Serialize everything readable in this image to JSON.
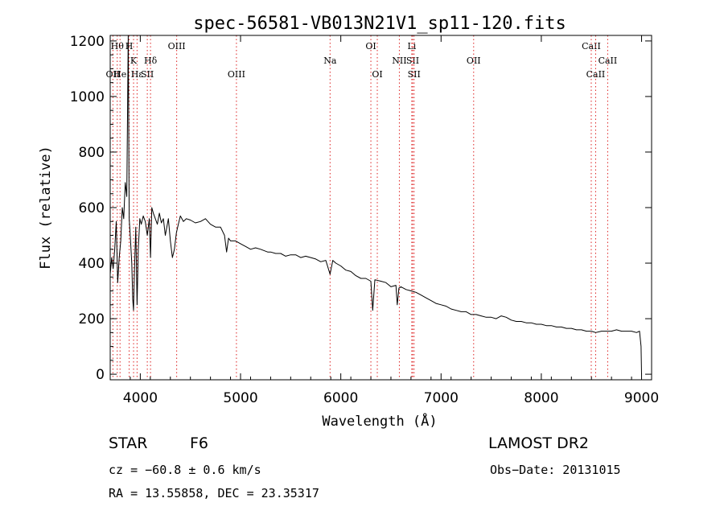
{
  "chart_data": {
    "type": "line",
    "title": "spec-56581-VB013N21V1_sp11-120.fits",
    "xlabel": "Wavelength (Å)",
    "ylabel": "Flux (relative)",
    "xlim": [
      3700,
      9100
    ],
    "ylim": [
      -20,
      1220
    ],
    "xticks": [
      4000,
      5000,
      6000,
      7000,
      8000,
      9000
    ],
    "yticks": [
      0,
      200,
      400,
      600,
      800,
      1000,
      1200
    ],
    "grid": false,
    "series": [
      {
        "color": "#000000",
        "x": [
          3700,
          3715,
          3730,
          3745,
          3760,
          3775,
          3790,
          3805,
          3820,
          3835,
          3850,
          3865,
          3880,
          3889,
          3900,
          3915,
          3925,
          3933,
          3940,
          3955,
          3968,
          3980,
          3995,
          4010,
          4030,
          4050,
          4070,
          4090,
          4102,
          4115,
          4130,
          4150,
          4170,
          4190,
          4210,
          4230,
          4250,
          4280,
          4300,
          4320,
          4340,
          4360,
          4380,
          4400,
          4430,
          4460,
          4500,
          4550,
          4600,
          4650,
          4700,
          4750,
          4800,
          4840,
          4861,
          4880,
          4900,
          4950,
          5000,
          5050,
          5100,
          5150,
          5200,
          5270,
          5300,
          5350,
          5400,
          5450,
          5500,
          5550,
          5600,
          5650,
          5700,
          5750,
          5800,
          5850,
          5893,
          5920,
          5950,
          6000,
          6050,
          6100,
          6150,
          6200,
          6250,
          6300,
          6318,
          6340,
          6400,
          6450,
          6500,
          6550,
          6563,
          6580,
          6600,
          6650,
          6700,
          6750,
          6800,
          6850,
          6900,
          6950,
          7000,
          7050,
          7100,
          7150,
          7200,
          7250,
          7300,
          7350,
          7400,
          7450,
          7500,
          7550,
          7600,
          7650,
          7700,
          7750,
          7800,
          7850,
          7900,
          7950,
          8000,
          8050,
          8100,
          8150,
          8200,
          8250,
          8300,
          8350,
          8400,
          8450,
          8500,
          8542,
          8600,
          8650,
          8700,
          8750,
          8800,
          8850,
          8900,
          8950,
          8980,
          8995,
          9000
        ],
        "y": [
          360,
          420,
          380,
          450,
          550,
          330,
          420,
          480,
          600,
          560,
          690,
          640,
          1220,
          560,
          500,
          400,
          270,
          230,
          350,
          530,
          250,
          450,
          560,
          540,
          570,
          550,
          500,
          560,
          420,
          600,
          580,
          560,
          540,
          580,
          545,
          560,
          500,
          560,
          480,
          420,
          450,
          510,
          540,
          570,
          550,
          560,
          555,
          545,
          550,
          560,
          540,
          530,
          530,
          500,
          440,
          490,
          480,
          480,
          470,
          460,
          450,
          455,
          450,
          440,
          440,
          435,
          435,
          425,
          430,
          430,
          420,
          425,
          420,
          415,
          405,
          410,
          360,
          410,
          400,
          390,
          375,
          370,
          355,
          345,
          345,
          335,
          230,
          340,
          335,
          330,
          315,
          320,
          250,
          310,
          315,
          305,
          300,
          295,
          285,
          275,
          265,
          255,
          250,
          245,
          235,
          230,
          225,
          225,
          215,
          215,
          210,
          205,
          205,
          200,
          210,
          205,
          195,
          190,
          190,
          185,
          185,
          180,
          180,
          175,
          175,
          170,
          170,
          165,
          165,
          160,
          160,
          155,
          155,
          150,
          155,
          155,
          155,
          160,
          155,
          155,
          155,
          150,
          155,
          100,
          0
        ]
      }
    ],
    "lines": [
      {
        "wl": 3727,
        "labels": [
          "OII"
        ],
        "rows": [
          3
        ]
      },
      {
        "wl": 3770,
        "labels": [
          "Hθ"
        ],
        "rows": [
          1
        ]
      },
      {
        "wl": 3798,
        "labels": [
          "He"
        ],
        "rows": [
          3
        ]
      },
      {
        "wl": 3889,
        "labels": [
          "H"
        ],
        "rows": [
          1
        ]
      },
      {
        "wl": 3933,
        "labels": [
          "K"
        ],
        "rows": [
          2
        ]
      },
      {
        "wl": 3968,
        "labels": [
          "Hε"
        ],
        "rows": [
          3
        ]
      },
      {
        "wl": 4070,
        "labels": [
          "SII"
        ],
        "rows": [
          3
        ]
      },
      {
        "wl": 4102,
        "labels": [
          "Hδ"
        ],
        "rows": [
          2
        ]
      },
      {
        "wl": 4363,
        "labels": [
          "OIII"
        ],
        "rows": [
          1
        ]
      },
      {
        "wl": 4959,
        "labels": [
          "OIII"
        ],
        "rows": [
          3
        ]
      },
      {
        "wl": 5893,
        "labels": [
          "Na"
        ],
        "rows": [
          2
        ]
      },
      {
        "wl": 6300,
        "labels": [
          "OI"
        ],
        "rows": [
          1
        ]
      },
      {
        "wl": 6364,
        "labels": [
          "OI"
        ],
        "rows": [
          3
        ]
      },
      {
        "wl": 6584,
        "labels": [
          "NII"
        ],
        "rows": [
          2
        ]
      },
      {
        "wl": 6708,
        "labels": [
          "Li"
        ],
        "rows": [
          1
        ]
      },
      {
        "wl": 6717,
        "labels": [
          "SII"
        ],
        "rows": [
          2
        ]
      },
      {
        "wl": 6731,
        "labels": [
          "SII"
        ],
        "rows": [
          3
        ]
      },
      {
        "wl": 7325,
        "labels": [
          "OII"
        ],
        "rows": [
          2
        ]
      },
      {
        "wl": 8498,
        "labels": [
          "CaII"
        ],
        "rows": [
          1
        ]
      },
      {
        "wl": 8542,
        "labels": [
          "CaII"
        ],
        "rows": [
          3
        ]
      },
      {
        "wl": 8662,
        "labels": [
          "CaII"
        ],
        "rows": [
          2
        ]
      }
    ]
  },
  "info": {
    "class": "STAR",
    "subclass": "F6",
    "survey": "LAMOST DR2",
    "cz": "cz = −60.8 ± 0.6 km/s",
    "obsdate": "Obs−Date: 20131015",
    "coords": "RA =  13.55858, DEC =  23.35317"
  }
}
